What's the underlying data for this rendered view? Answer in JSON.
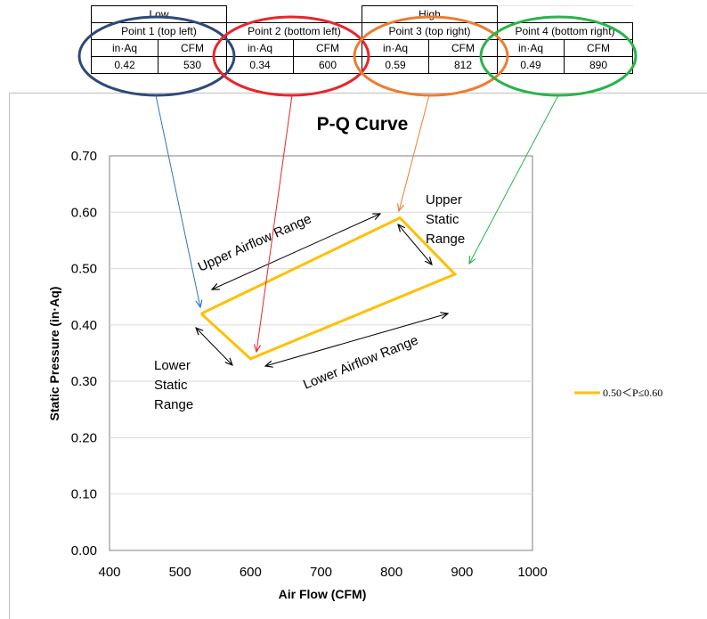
{
  "points_table": {
    "groups": [
      "Low",
      "High"
    ],
    "point_names": [
      "Point 1 (top left)",
      "Point 2 (bottom left)",
      "Point 3 (top right)",
      "Point  4 (bottom right)"
    ],
    "unit_headers": [
      "in·Aq",
      "CFM"
    ],
    "rows": [
      [
        "0.42",
        "530"
      ],
      [
        "0.34",
        "600"
      ],
      [
        "0.59",
        "812"
      ],
      [
        "0.49",
        "890"
      ]
    ]
  },
  "chart_data": {
    "type": "line",
    "title": "P-Q Curve",
    "xlabel": "Air Flow (CFM)",
    "ylabel": "Static Pressure (in·Aq)",
    "xlim": [
      400,
      1000
    ],
    "ylim": [
      0.0,
      0.7
    ],
    "x_ticks": [
      "400",
      "500",
      "600",
      "700",
      "800",
      "900",
      "1000"
    ],
    "y_ticks": [
      "0.00",
      "0.10",
      "0.20",
      "0.30",
      "0.40",
      "0.50",
      "0.60",
      "0.70"
    ],
    "grid": true,
    "legend_position": "right",
    "series": [
      {
        "name": "0.50＜P≤0.60",
        "color": "#ffc000",
        "x": [
          530,
          600,
          890,
          812,
          530
        ],
        "y": [
          0.42,
          0.34,
          0.49,
          0.59,
          0.42
        ]
      }
    ],
    "annotations": {
      "upper_airflow_range": "Upper Airflow Range",
      "lower_airflow_range": "Lower Airflow Range",
      "upper_static_range": [
        "Upper",
        "Static",
        "Range"
      ],
      "lower_static_range": [
        "Lower",
        "Static",
        "Range"
      ]
    }
  },
  "colors": {
    "point1": "#2e4a7a",
    "point2": "#e8262a",
    "point3": "#ed7d31",
    "point4": "#2ab34a",
    "series": "#ffc000",
    "gridline": "#d9d9d9"
  }
}
